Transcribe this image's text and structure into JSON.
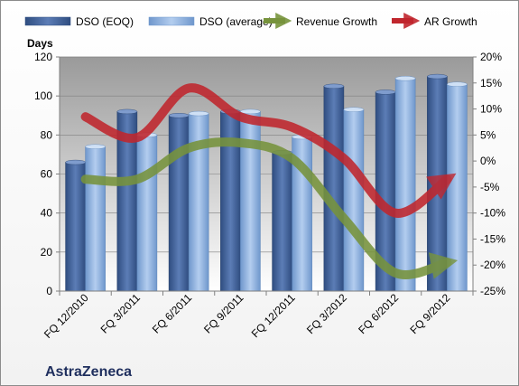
{
  "company": "AstraZeneca",
  "chart_data": {
    "type": "bar",
    "categories": [
      "FQ 12/2010",
      "FQ 3/2011",
      "FQ 6/2011",
      "FQ 9/2011",
      "FQ 12/2011",
      "FQ 3/2012",
      "FQ 6/2012",
      "FQ 9/2012"
    ],
    "ylabel": "Days",
    "ylim": [
      0,
      120
    ],
    "yticks": [
      0,
      20,
      40,
      60,
      80,
      100,
      120
    ],
    "y2lim": [
      -0.25,
      0.2
    ],
    "y2ticks": [
      "-25%",
      "-20%",
      "-15%",
      "-10%",
      "-5%",
      "0%",
      "5%",
      "10%",
      "15%",
      "20%"
    ],
    "legend_position": "top",
    "series": [
      {
        "name": "DSO (EOQ)",
        "kind": "bar",
        "axis": "left",
        "color": "#4a6aa2",
        "values": [
          66,
          92,
          90,
          92,
          71,
          105,
          102,
          110
        ]
      },
      {
        "name": "DSO (average)",
        "kind": "bar",
        "axis": "left",
        "color": "#8eb4e3",
        "values": [
          74,
          80,
          91,
          92,
          79,
          93,
          109,
          106
        ]
      },
      {
        "name": "Revenue Growth",
        "kind": "line",
        "axis": "right",
        "color": "#77933c",
        "values": [
          -0.035,
          -0.035,
          0.025,
          0.035,
          0.005,
          -0.11,
          -0.215,
          -0.195
        ]
      },
      {
        "name": "AR Growth",
        "kind": "line",
        "axis": "right",
        "color": "#c0262d",
        "values": [
          0.085,
          0.045,
          0.14,
          0.085,
          0.065,
          0.005,
          -0.1,
          -0.035
        ]
      }
    ]
  }
}
